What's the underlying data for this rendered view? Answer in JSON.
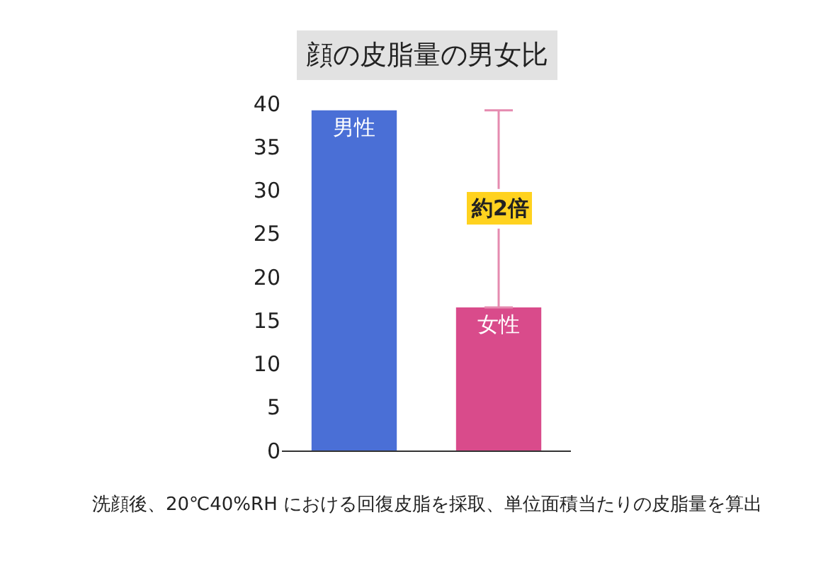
{
  "chart_data": {
    "type": "bar",
    "title": "顔の皮脂量の男女比",
    "categories": [
      "男性",
      "女性"
    ],
    "values": [
      39.2,
      16.5
    ],
    "colors": [
      "#4a6fd6",
      "#d94b8b"
    ],
    "ylim": [
      0,
      40
    ],
    "yticks": [
      0,
      5,
      10,
      15,
      20,
      25,
      30,
      35,
      40
    ],
    "grid": false,
    "legend": false,
    "annotations": [
      "約2倍",
      "洗顔後、20℃40%RH における回復皮脂を採取、単位面積当たりの皮脂量を算出"
    ]
  }
}
